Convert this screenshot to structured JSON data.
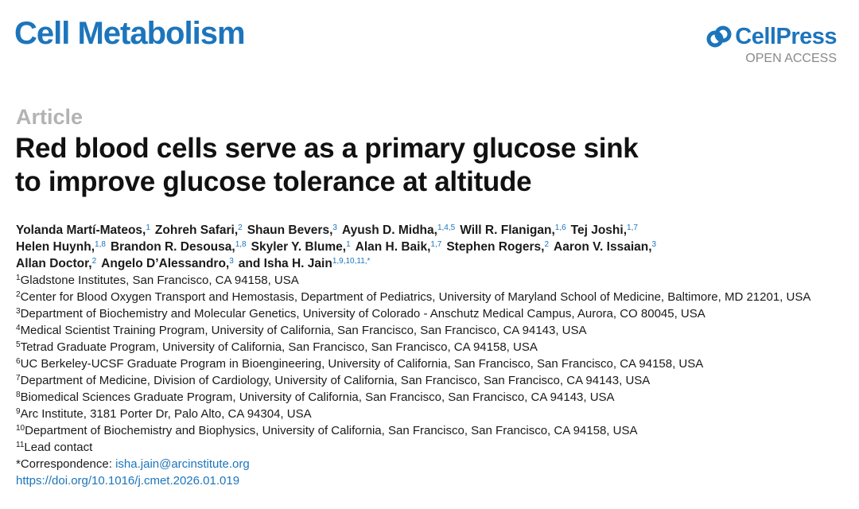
{
  "header": {
    "journal": "Cell Metabolism",
    "publisher": "CellPress",
    "access": "OPEN ACCESS"
  },
  "article_type": "Article",
  "title_lines": [
    "Red blood cells serve as a primary glucose sink",
    "to improve glucose tolerance at altitude"
  ],
  "author_lines": [
    [
      {
        "name": "Yolanda Martí-Mateos,",
        "sup": "1"
      },
      {
        "name": "Zohreh Safari,",
        "sup": "2"
      },
      {
        "name": "Shaun Bevers,",
        "sup": "3"
      },
      {
        "name": "Ayush D. Midha,",
        "sup": "1,4,5"
      },
      {
        "name": "Will R. Flanigan,",
        "sup": "1,6"
      },
      {
        "name": "Tej Joshi,",
        "sup": "1,7"
      }
    ],
    [
      {
        "name": "Helen Huynh,",
        "sup": "1,8"
      },
      {
        "name": "Brandon R. Desousa,",
        "sup": "1,8"
      },
      {
        "name": "Skyler Y. Blume,",
        "sup": "1"
      },
      {
        "name": "Alan H. Baik,",
        "sup": "1,7"
      },
      {
        "name": "Stephen Rogers,",
        "sup": "2"
      },
      {
        "name": "Aaron V. Issaian,",
        "sup": "3"
      }
    ],
    [
      {
        "name": "Allan Doctor,",
        "sup": "2"
      },
      {
        "name": "Angelo D’Alessandro,",
        "sup": "3"
      },
      {
        "name": "and Isha H. Jain",
        "sup": "1,9,10,11,*"
      }
    ]
  ],
  "affiliations": [
    {
      "num": "1",
      "text": "Gladstone Institutes, San Francisco, CA 94158, USA"
    },
    {
      "num": "2",
      "text": "Center for Blood Oxygen Transport and Hemostasis, Department of Pediatrics, University of Maryland School of Medicine, Baltimore, MD 21201, USA"
    },
    {
      "num": "3",
      "text": "Department of Biochemistry and Molecular Genetics, University of Colorado - Anschutz Medical Campus, Aurora, CO 80045, USA"
    },
    {
      "num": "4",
      "text": "Medical Scientist Training Program, University of California, San Francisco, San Francisco, CA 94143, USA"
    },
    {
      "num": "5",
      "text": "Tetrad Graduate Program, University of California, San Francisco, San Francisco, CA 94158, USA"
    },
    {
      "num": "6",
      "text": "UC Berkeley-UCSF Graduate Program in Bioengineering, University of California, San Francisco, San Francisco, CA 94158, USA"
    },
    {
      "num": "7",
      "text": "Department of Medicine, Division of Cardiology, University of California, San Francisco, San Francisco, CA 94143, USA"
    },
    {
      "num": "8",
      "text": "Biomedical Sciences Graduate Program, University of California, San Francisco, San Francisco, CA 94143, USA"
    },
    {
      "num": "9",
      "text": "Arc Institute, 3181 Porter Dr, Palo Alto, CA 94304, USA"
    },
    {
      "num": "10",
      "text": "Department of Biochemistry and Biophysics, University of California, San Francisco, San Francisco, CA 94158, USA"
    },
    {
      "num": "11",
      "text": "Lead contact"
    }
  ],
  "correspondence": {
    "label": "*Correspondence: ",
    "email": "isha.jain@arcinstitute.org"
  },
  "doi": "https://doi.org/10.1016/j.cmet.2026.01.019"
}
